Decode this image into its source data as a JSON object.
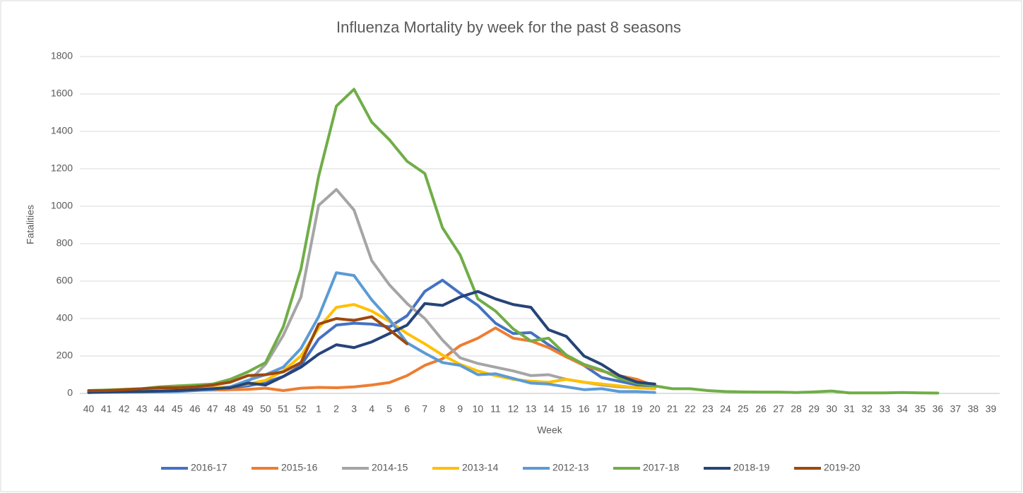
{
  "chart_data": {
    "type": "line",
    "title": "Influenza Mortality by week for the past 8 seasons",
    "x_label": "Week",
    "y_label": "Fatalities",
    "categories": [
      "40",
      "41",
      "42",
      "43",
      "44",
      "45",
      "46",
      "47",
      "48",
      "49",
      "50",
      "51",
      "52",
      "1",
      "2",
      "3",
      "4",
      "5",
      "6",
      "7",
      "8",
      "9",
      "10",
      "11",
      "12",
      "13",
      "14",
      "15",
      "16",
      "17",
      "18",
      "19",
      "20",
      "21",
      "22",
      "23",
      "24",
      "25",
      "26",
      "27",
      "28",
      "29",
      "30",
      "31",
      "32",
      "33",
      "34",
      "35",
      "36",
      "37",
      "38",
      "39"
    ],
    "ylim": [
      0,
      1800
    ],
    "yticks": [
      0,
      200,
      400,
      600,
      800,
      1000,
      1200,
      1400,
      1600,
      1800
    ],
    "grid": true,
    "legend": "bottom",
    "series": [
      {
        "name": "2016-17",
        "color": "#4472c4",
        "values": [
          10,
          12,
          15,
          18,
          20,
          22,
          25,
          28,
          32,
          40,
          60,
          90,
          150,
          290,
          365,
          375,
          370,
          355,
          415,
          545,
          605,
          535,
          470,
          375,
          320,
          325,
          260,
          200,
          150,
          85,
          65,
          45,
          30,
          null,
          null,
          null,
          null,
          null,
          null,
          null,
          null,
          null,
          null,
          null,
          null,
          null,
          null,
          null,
          null,
          null,
          null,
          null
        ]
      },
      {
        "name": "2015-16",
        "color": "#ed7d31",
        "values": [
          10,
          12,
          14,
          15,
          15,
          15,
          17,
          18,
          20,
          22,
          28,
          15,
          28,
          32,
          30,
          35,
          45,
          58,
          95,
          150,
          185,
          255,
          295,
          350,
          295,
          280,
          245,
          195,
          150,
          120,
          95,
          75,
          40,
          null,
          null,
          null,
          null,
          null,
          null,
          null,
          null,
          null,
          null,
          null,
          null,
          null,
          null,
          null,
          null,
          null,
          null,
          null
        ]
      },
      {
        "name": "2014-15",
        "color": "#a5a5a5",
        "values": [
          15,
          18,
          20,
          22,
          25,
          25,
          28,
          30,
          35,
          60,
          155,
          310,
          515,
          1005,
          1090,
          980,
          710,
          580,
          480,
          400,
          285,
          190,
          160,
          140,
          120,
          95,
          100,
          75,
          60,
          45,
          35,
          30,
          25,
          null,
          null,
          null,
          null,
          null,
          null,
          null,
          null,
          null,
          null,
          null,
          null,
          null,
          null,
          null,
          null,
          null,
          null,
          null
        ]
      },
      {
        "name": "2013-14",
        "color": "#ffc000",
        "values": [
          10,
          12,
          15,
          18,
          20,
          22,
          25,
          28,
          35,
          50,
          70,
          120,
          200,
          350,
          460,
          475,
          440,
          385,
          320,
          265,
          205,
          155,
          120,
          95,
          75,
          65,
          60,
          75,
          60,
          50,
          40,
          30,
          25,
          null,
          null,
          null,
          null,
          null,
          null,
          null,
          null,
          null,
          null,
          null,
          null,
          null,
          null,
          null,
          null,
          null,
          null,
          null
        ]
      },
      {
        "name": "2012-13",
        "color": "#5b9bd5",
        "values": [
          5,
          6,
          7,
          8,
          9,
          10,
          15,
          20,
          35,
          70,
          100,
          140,
          240,
          410,
          645,
          630,
          500,
          395,
          270,
          215,
          165,
          150,
          100,
          105,
          80,
          55,
          50,
          35,
          20,
          25,
          10,
          10,
          5,
          null,
          null,
          null,
          null,
          null,
          null,
          null,
          null,
          null,
          null,
          null,
          null,
          null,
          null,
          null,
          null,
          null,
          null,
          null
        ]
      },
      {
        "name": "2017-18",
        "color": "#70ad47",
        "values": [
          15,
          18,
          22,
          25,
          35,
          40,
          45,
          50,
          75,
          115,
          165,
          355,
          665,
          1160,
          1535,
          1625,
          1450,
          1355,
          1240,
          1175,
          885,
          740,
          505,
          440,
          345,
          280,
          295,
          205,
          155,
          125,
          80,
          55,
          40,
          25,
          25,
          15,
          10,
          8,
          7,
          7,
          5,
          8,
          13,
          3,
          3,
          3,
          5,
          3,
          2,
          null,
          null,
          null
        ]
      },
      {
        "name": "2018-19",
        "color": "#264478",
        "values": [
          5,
          7,
          9,
          10,
          12,
          15,
          20,
          25,
          30,
          55,
          45,
          90,
          140,
          210,
          260,
          245,
          275,
          320,
          365,
          480,
          470,
          515,
          545,
          505,
          475,
          460,
          340,
          305,
          200,
          155,
          95,
          60,
          50,
          null,
          null,
          null,
          null,
          null,
          null,
          null,
          null,
          null,
          null,
          null,
          null,
          null,
          null,
          null,
          null,
          null,
          null,
          null
        ]
      },
      {
        "name": "2019-20",
        "color": "#9e480e",
        "values": [
          15,
          15,
          20,
          25,
          30,
          30,
          35,
          45,
          60,
          95,
          100,
          115,
          165,
          370,
          400,
          390,
          410,
          340,
          265,
          null,
          null,
          null,
          null,
          null,
          null,
          null,
          null,
          null,
          null,
          null,
          null,
          null,
          null,
          null,
          null,
          null,
          null,
          null,
          null,
          null,
          null,
          null,
          null,
          null,
          null,
          null,
          null,
          null,
          null,
          null,
          null,
          null
        ]
      }
    ]
  }
}
